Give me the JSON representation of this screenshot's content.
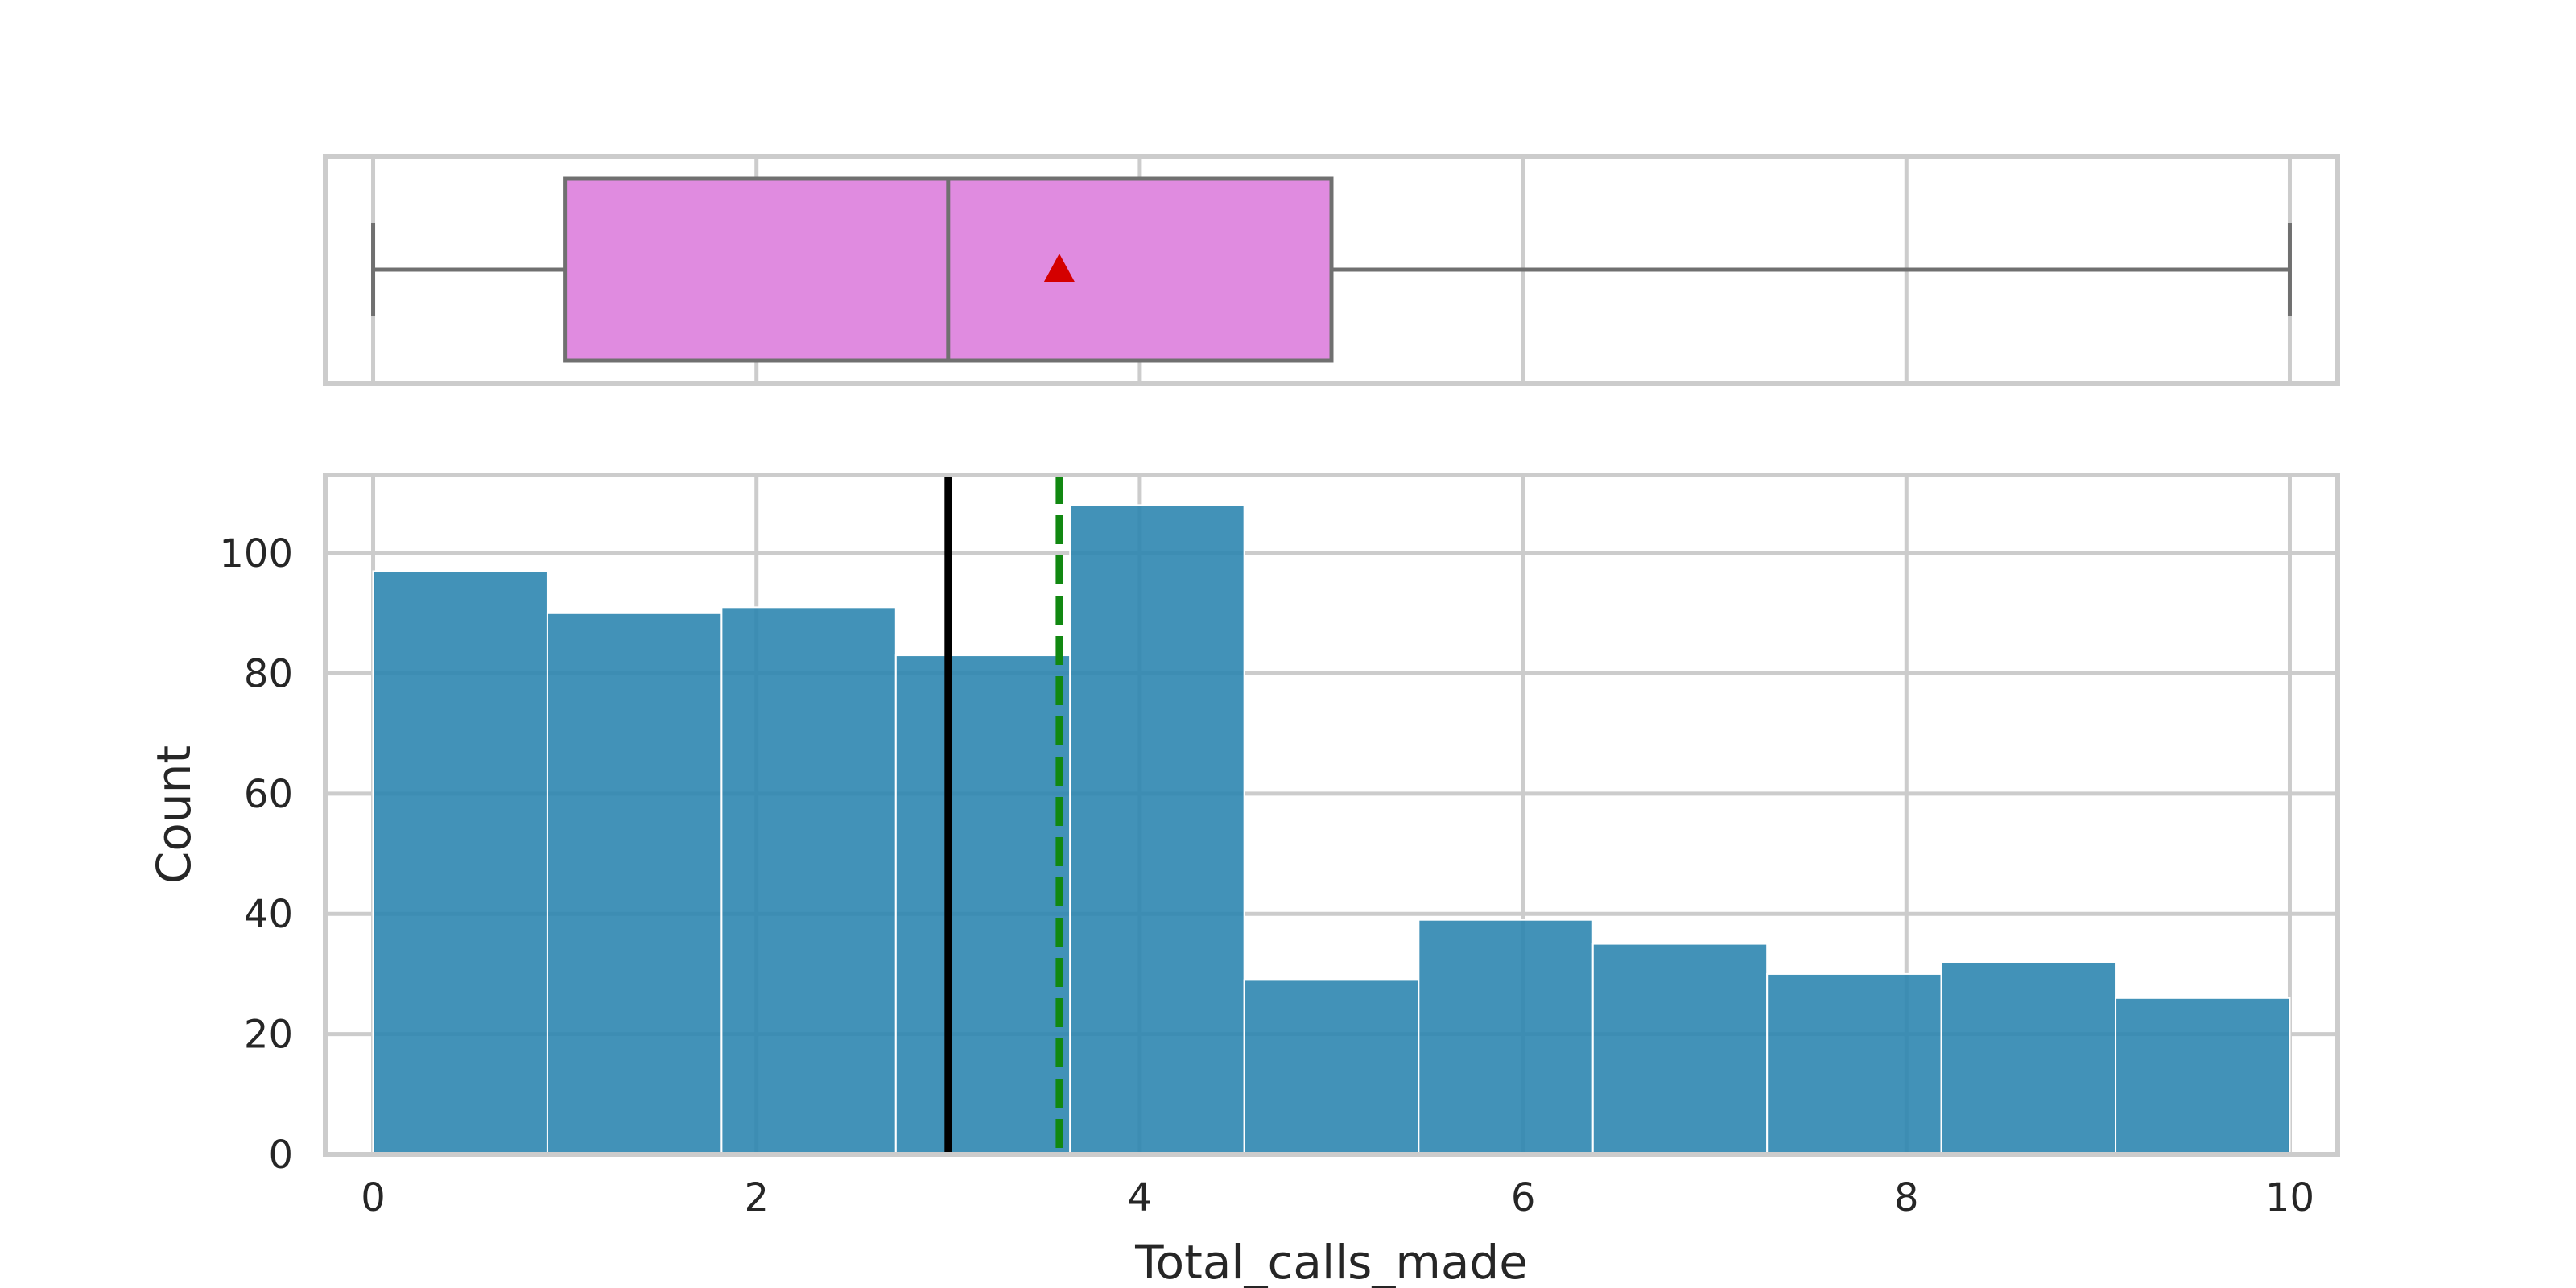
{
  "chart_data": {
    "type": "histogram_with_boxplot",
    "xlabel": "Total_calls_made",
    "ylabel": "Count",
    "xlim": [
      -0.25,
      10.25
    ],
    "ylim": [
      0,
      113
    ],
    "x_ticks": [
      0,
      2,
      4,
      6,
      8,
      10
    ],
    "y_ticks": [
      0,
      20,
      40,
      60,
      80,
      100
    ],
    "grid": true,
    "histogram": {
      "bin_edges": [
        0,
        0.909,
        1.818,
        2.727,
        3.636,
        4.545,
        5.455,
        6.364,
        7.273,
        8.182,
        9.091,
        10
      ],
      "counts": [
        97,
        90,
        91,
        83,
        108,
        29,
        39,
        35,
        30,
        32,
        26
      ],
      "color": "#2e86b0"
    },
    "boxplot": {
      "min": 0,
      "q1": 1,
      "median": 3,
      "q3": 5,
      "max": 10,
      "mean": 3.58,
      "box_color": "#e08be0",
      "mean_marker_color": "#d40000"
    },
    "reference_lines": {
      "median": {
        "x": 3,
        "color": "#000000",
        "style": "solid"
      },
      "mean": {
        "x": 3.58,
        "color": "#118811",
        "style": "dashed"
      }
    }
  }
}
